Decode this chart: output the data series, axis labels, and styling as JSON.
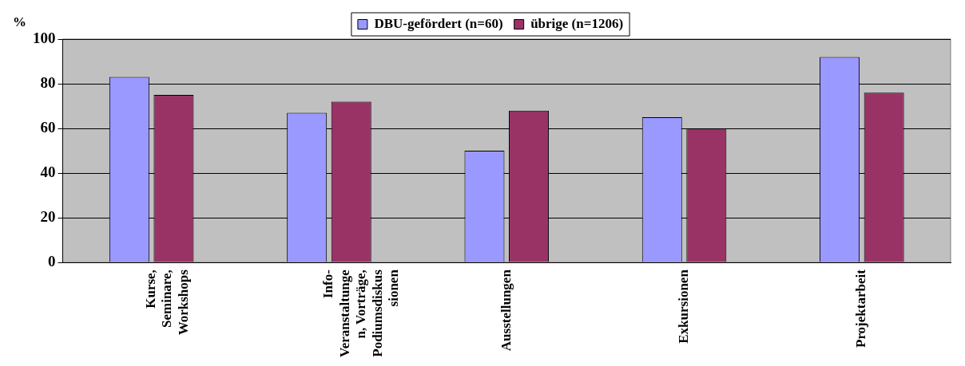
{
  "chart_data": {
    "type": "bar",
    "ylabel": "%",
    "categories": [
      "Kurse,\nSeminare,\nWorkshops",
      "Info-\nVeranstaltunge\nn, Vorträge,\nPodiumsdiskus\nsionen",
      "Ausstellungen",
      "Exkursionen",
      "Projektarbeit"
    ],
    "series": [
      {
        "name": "DBU-gefördert (n=60)",
        "color": "#9999ff",
        "values": [
          83,
          67,
          50,
          65,
          92
        ]
      },
      {
        "name": "übrige (n=1206)",
        "color": "#993366",
        "values": [
          75,
          72,
          68,
          60,
          76
        ]
      }
    ],
    "ylim": [
      0,
      100
    ],
    "yticks": [
      0,
      20,
      40,
      60,
      80,
      100
    ],
    "grid": "y",
    "legend": "top"
  }
}
